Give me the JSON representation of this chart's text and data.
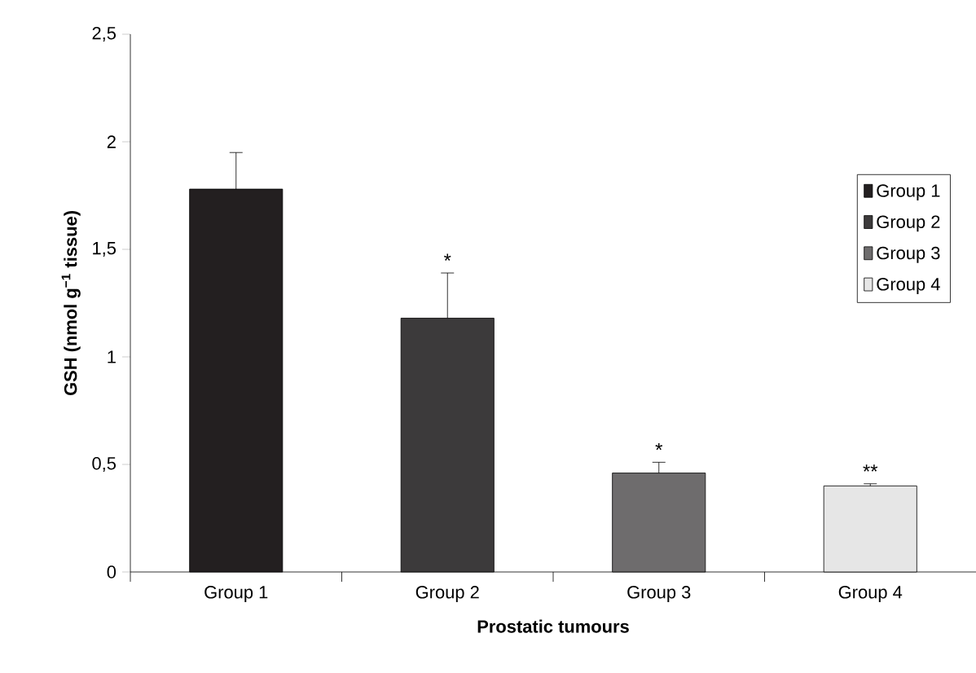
{
  "chart_data": {
    "type": "bar",
    "ylabel": "GSH (nmol g$^{−1}$ tissue)",
    "xlabel": "Prostatic tumours",
    "categories": [
      "Group 1",
      "Group 2",
      "Group 3",
      "Group 4"
    ],
    "series": [
      {
        "name": "Group 1",
        "color": "#231f20",
        "values": [
          1.78,
          null,
          null,
          null
        ],
        "errors": [
          0.17,
          null,
          null,
          null
        ]
      },
      {
        "name": "Group 2",
        "color": "#3c3a3b",
        "values": [
          null,
          1.18,
          null,
          null
        ],
        "errors": [
          null,
          0.21,
          null,
          null
        ]
      },
      {
        "name": "Group 3",
        "color": "#6e6c6d",
        "values": [
          null,
          null,
          0.46,
          null
        ],
        "errors": [
          null,
          null,
          0.05,
          null
        ]
      },
      {
        "name": "Group 4",
        "color": "#e6e6e6",
        "values": [
          null,
          null,
          null,
          0.4
        ],
        "errors": [
          null,
          null,
          null,
          0.01
        ]
      }
    ],
    "ylim": [
      0,
      2.5
    ],
    "yticks": [
      0,
      {
        "value": 0.5,
        "label": "0,5"
      },
      1,
      {
        "value": 1.5,
        "label": "1,5"
      },
      2,
      {
        "value": 2.5,
        "label": "2,5"
      }
    ],
    "legend": "right",
    "annotations": [
      {
        "text": "*",
        "x": "Group 2",
        "y": 1.39
      },
      {
        "text": "*",
        "x": "Group 3",
        "y": 0.51
      },
      {
        "text": "**",
        "x": "Group 4",
        "y": 0.41
      }
    ]
  }
}
